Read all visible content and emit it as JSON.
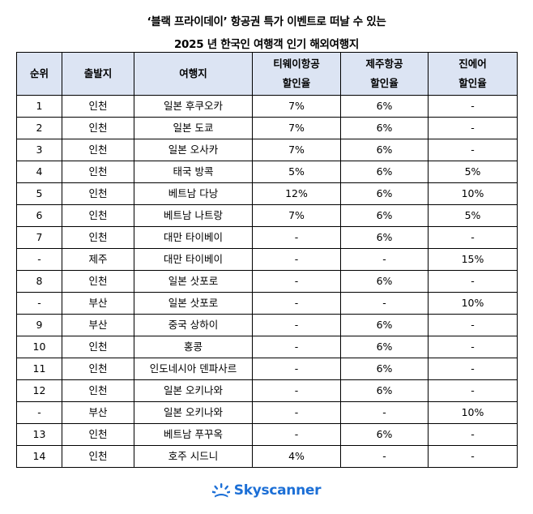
{
  "title_line1": "‘블랙 프라이데이’ 항공권 특가 이벤트로 떠날 수 있는",
  "title_line2": "2025 년 한국인 여행객 인기 해외여행지",
  "headers": {
    "rank": "순위",
    "origin": "출발지",
    "destination": "여행지",
    "tway_line1": "티웨이항공",
    "tway_line2": "할인율",
    "jeju_line1": "제주항공",
    "jeju_line2": "할인율",
    "jin_line1": "진에어",
    "jin_line2": "할인율"
  },
  "rows": [
    {
      "rank": "1",
      "origin": "인천",
      "destination": "일본 후쿠오카",
      "tway": "7%",
      "jeju": "6%",
      "jin": "-"
    },
    {
      "rank": "2",
      "origin": "인천",
      "destination": "일본 도쿄",
      "tway": "7%",
      "jeju": "6%",
      "jin": "-"
    },
    {
      "rank": "3",
      "origin": "인천",
      "destination": "일본 오사카",
      "tway": "7%",
      "jeju": "6%",
      "jin": "-"
    },
    {
      "rank": "4",
      "origin": "인천",
      "destination": "태국 방콕",
      "tway": "5%",
      "jeju": "6%",
      "jin": "5%"
    },
    {
      "rank": "5",
      "origin": "인천",
      "destination": "베트남 다낭",
      "tway": "12%",
      "jeju": "6%",
      "jin": "10%"
    },
    {
      "rank": "6",
      "origin": "인천",
      "destination": "베트남 나트랑",
      "tway": "7%",
      "jeju": "6%",
      "jin": "5%"
    },
    {
      "rank": "7",
      "origin": "인천",
      "destination": "대만 타이베이",
      "tway": "-",
      "jeju": "6%",
      "jin": "-"
    },
    {
      "rank": "-",
      "origin": "제주",
      "destination": "대만 타이베이",
      "tway": "-",
      "jeju": "-",
      "jin": "15%"
    },
    {
      "rank": "8",
      "origin": "인천",
      "destination": "일본 삿포로",
      "tway": "-",
      "jeju": "6%",
      "jin": "-"
    },
    {
      "rank": "-",
      "origin": "부산",
      "destination": "일본 삿포로",
      "tway": "-",
      "jeju": "-",
      "jin": "10%"
    },
    {
      "rank": "9",
      "origin": "부산",
      "destination": "중국 상하이",
      "tway": "-",
      "jeju": "6%",
      "jin": "-"
    },
    {
      "rank": "10",
      "origin": "인천",
      "destination": "홍콩",
      "tway": "-",
      "jeju": "6%",
      "jin": "-"
    },
    {
      "rank": "11",
      "origin": "인천",
      "destination": "인도네시아 덴파사르",
      "tway": "-",
      "jeju": "6%",
      "jin": "-"
    },
    {
      "rank": "12",
      "origin": "인천",
      "destination": "일본 오키나와",
      "tway": "-",
      "jeju": "6%",
      "jin": "-"
    },
    {
      "rank": "-",
      "origin": "부산",
      "destination": "일본 오키나와",
      "tway": "-",
      "jeju": "-",
      "jin": "10%"
    },
    {
      "rank": "13",
      "origin": "인천",
      "destination": "베트남 푸꾸옥",
      "tway": "-",
      "jeju": "6%",
      "jin": "-"
    },
    {
      "rank": "14",
      "origin": "인천",
      "destination": "호주 시드니",
      "tway": "4%",
      "jeju": "-",
      "jin": "-"
    }
  ],
  "logo": {
    "text": "Skyscanner",
    "icon": "skyscanner-sunrise-icon",
    "brand_color": "#1c6fd6"
  },
  "colors": {
    "header_bg": "#dce4f3"
  }
}
